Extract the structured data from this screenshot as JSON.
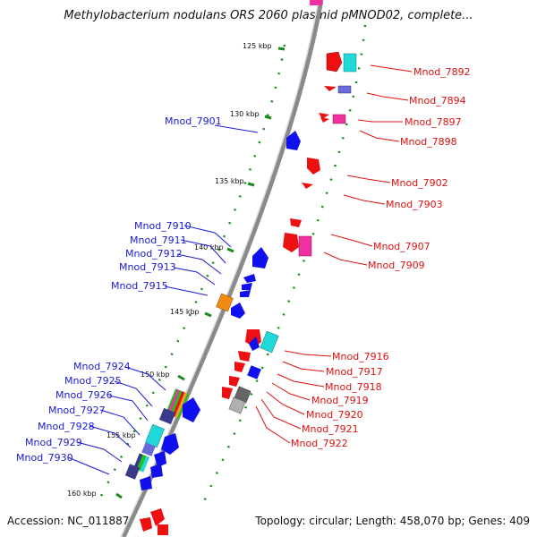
{
  "title": "Methylobacterium nodulans ORS 2060 plasmid pMNOD02, complete...",
  "accession": "Accession: NC_011887",
  "topology": "Topology: circular; Length: 458,070 bp; Genes: 409",
  "ticks": [
    "125 kbp",
    "130 kbp",
    "135 kbp",
    "140 kbp",
    "145 kbp",
    "150 kbp",
    "155 kbp",
    "160 kbp"
  ],
  "left_genes": [
    "Mnod_7901",
    "Mnod_7910",
    "Mnod_7911",
    "Mnod_7912",
    "Mnod_7913",
    "Mnod_7915",
    "Mnod_7924",
    "Mnod_7925",
    "Mnod_7926",
    "Mnod_7927",
    "Mnod_7928",
    "Mnod_7929",
    "Mnod_7930"
  ],
  "right_genes": [
    "Mnod_7892",
    "Mnod_7894",
    "Mnod_7897",
    "Mnod_7898",
    "Mnod_7902",
    "Mnod_7903",
    "Mnod_7907",
    "Mnod_7909",
    "Mnod_7916",
    "Mnod_7917",
    "Mnod_7918",
    "Mnod_7919",
    "Mnod_7920",
    "Mnod_7921",
    "Mnod_7922"
  ],
  "colors": {
    "forward": "#1010ee",
    "reverse": "#ee1010",
    "cyan": "#20d8d8",
    "magenta": "#ee30a0",
    "orange": "#f08a10",
    "gray": "#888888",
    "backbone": "#8a8a8a",
    "gc": "#1a8a1a"
  }
}
